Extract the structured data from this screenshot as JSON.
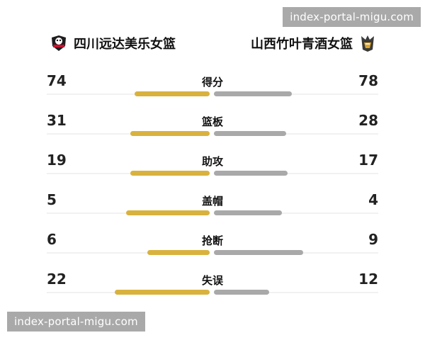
{
  "watermarks": {
    "top": "index-portal-migu.com",
    "bottom": "index-portal-migu.com"
  },
  "teams": {
    "left": {
      "name": "四川远达美乐女篮",
      "logo_icon": "sichuan-team-logo-icon",
      "color": "#d9b23e"
    },
    "right": {
      "name": "山西竹叶青酒女篮",
      "logo_icon": "shanxi-team-logo-icon",
      "color": "#a9a9a9"
    }
  },
  "stats": [
    {
      "label": "得分",
      "left": "74",
      "right": "78",
      "left_fill": 0.53,
      "right_fill": 0.55
    },
    {
      "label": "篮板",
      "left": "31",
      "right": "28",
      "left_fill": 0.56,
      "right_fill": 0.51
    },
    {
      "label": "助攻",
      "left": "19",
      "right": "17",
      "left_fill": 0.56,
      "right_fill": 0.52
    },
    {
      "label": "盖帽",
      "left": "5",
      "right": "4",
      "left_fill": 0.59,
      "right_fill": 0.48
    },
    {
      "label": "抢断",
      "left": "6",
      "right": "9",
      "left_fill": 0.44,
      "right_fill": 0.63
    },
    {
      "label": "失误",
      "left": "22",
      "right": "12",
      "left_fill": 0.67,
      "right_fill": 0.39
    }
  ]
}
